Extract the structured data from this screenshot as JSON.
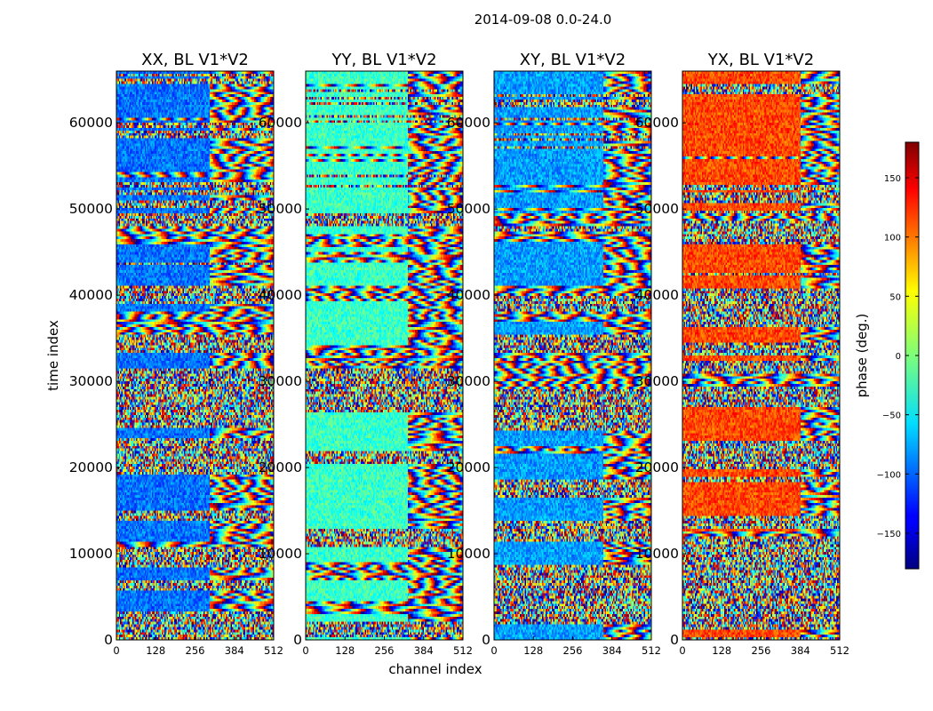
{
  "chart_data": [
    {
      "type": "heatmap",
      "suptitle": "2014-09-08 0.0-24.0",
      "xlabel": "channel index",
      "ylabel": "time index",
      "colorbar_label": "phase (deg.)",
      "colormap": "jet",
      "value_range": [
        -180,
        180
      ],
      "x_range": [
        0,
        512
      ],
      "y_range": [
        0,
        66000
      ],
      "x_ticks": [
        0,
        128,
        256,
        384,
        512
      ],
      "y_ticks": [
        0,
        10000,
        20000,
        30000,
        40000,
        50000,
        60000
      ],
      "colorbar_ticks": [
        -150,
        -100,
        -50,
        0,
        50,
        100,
        150
      ],
      "colorbar_tick_labels": [
        "−150",
        "−100",
        "−50",
        "0",
        "50",
        "100",
        "150"
      ],
      "panels": [
        {
          "title": "XX, BL V1*V2",
          "mean_phase_deg": -95
        },
        {
          "title": "YY, BL V1*V2",
          "mean_phase_deg": -25
        },
        {
          "title": "XY, BL V1*V2",
          "mean_phase_deg": -80
        },
        {
          "title": "YX, BL V1*V2",
          "mean_phase_deg": 110
        }
      ]
    }
  ],
  "colors": {
    "axes": "#000000",
    "background": "#ffffff"
  }
}
